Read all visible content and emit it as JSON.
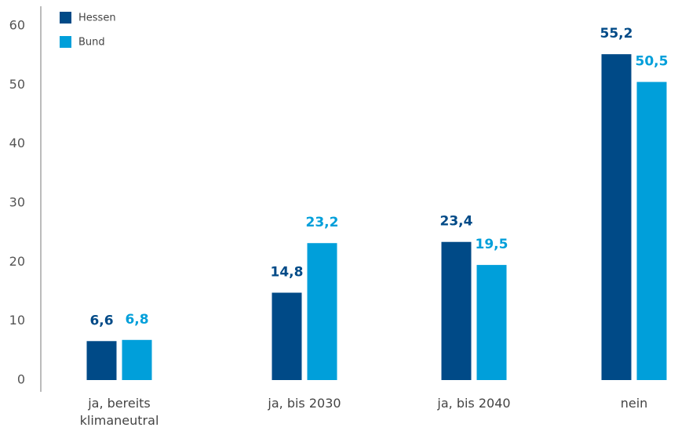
{
  "chart_data": {
    "type": "bar",
    "categories": [
      "ja, bereits klimaneutral",
      "ja, bis 2030",
      "ja, bis 2040",
      "nein"
    ],
    "series": [
      {
        "name": "Hessen",
        "color": "#004a87",
        "values": [
          6.6,
          14.8,
          23.4,
          55.2
        ],
        "value_labels": [
          "6,6",
          "14,8",
          "23,4",
          "55,2"
        ]
      },
      {
        "name": "Bund",
        "color": "#009fda",
        "values": [
          6.8,
          23.2,
          19.5,
          50.5
        ],
        "value_labels": [
          "6,8",
          "23,2",
          "19,5",
          "50,5"
        ]
      }
    ],
    "ylim": [
      0,
      60
    ],
    "yticks": [
      0,
      10,
      20,
      30,
      40,
      50,
      60
    ],
    "grid": false,
    "legend": "top-left"
  }
}
